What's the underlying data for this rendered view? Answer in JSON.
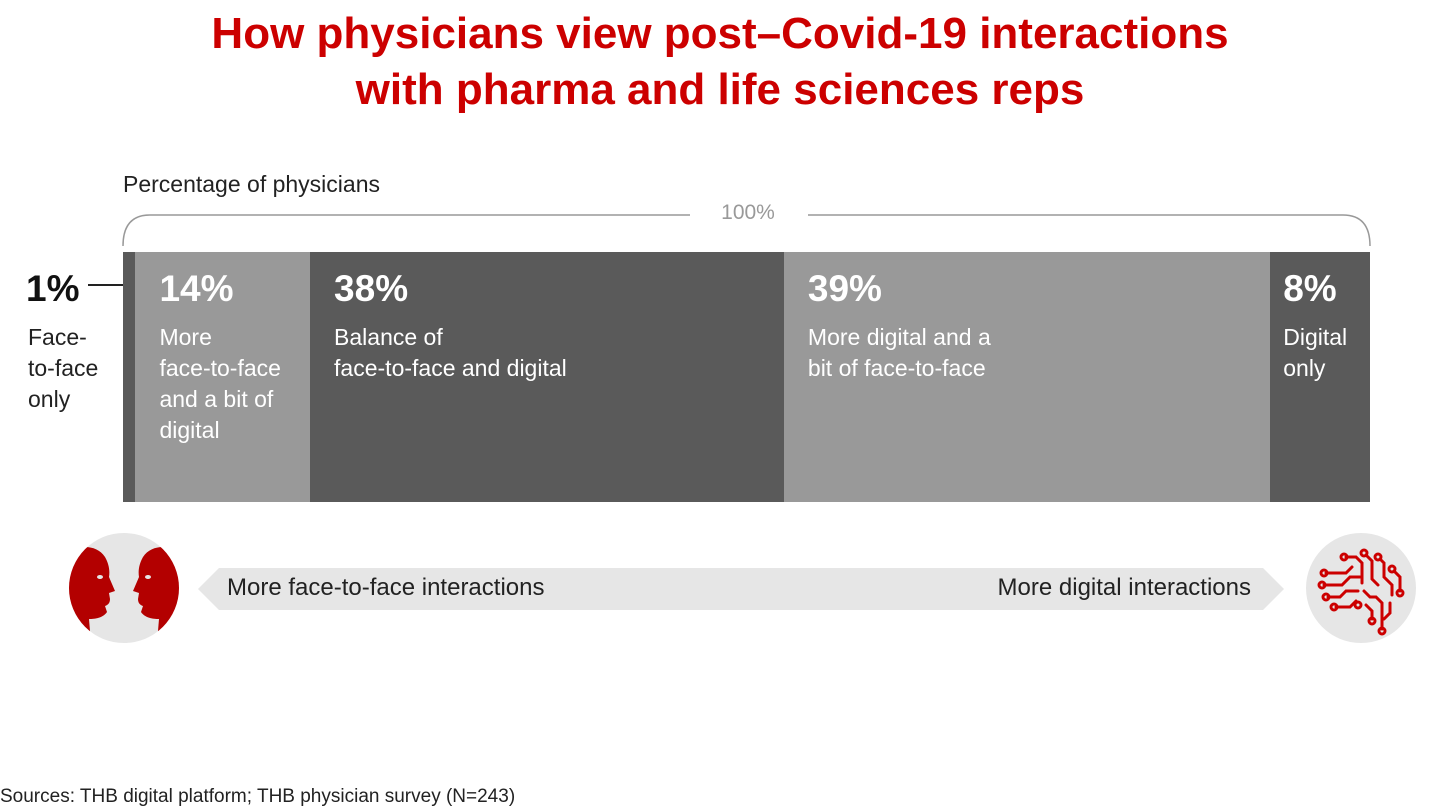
{
  "chart_data": {
    "type": "bar",
    "orientation": "horizontal",
    "stacked": true,
    "title_lines": [
      "How physicians view post–Covid-19 interactions",
      "with pharma and life sciences reps"
    ],
    "subtitle": "Percentage of physicians",
    "total_label": "100%",
    "segments": [
      {
        "pct_label": "1%",
        "value": 1,
        "label_lines": [
          "Face-",
          "to-face",
          "only"
        ],
        "color": "#5a5a5a"
      },
      {
        "pct_label": "14%",
        "value": 14,
        "label_lines": [
          "More",
          "face-to-face",
          "and a bit of",
          "digital"
        ],
        "color": "#999999"
      },
      {
        "pct_label": "38%",
        "value": 38,
        "label_lines": [
          "Balance of",
          "face-to-face and digital"
        ],
        "color": "#5a5a5a"
      },
      {
        "pct_label": "39%",
        "value": 39,
        "label_lines": [
          "More digital and a",
          "bit of face-to-face"
        ],
        "color": "#999999"
      },
      {
        "pct_label": "8%",
        "value": 8,
        "label_lines": [
          "Digital",
          "only"
        ],
        "color": "#5a5a5a"
      }
    ],
    "scale_left": "More face-to-face interactions",
    "scale_right": "More digital interactions",
    "source": "Sources: THB digital platform; THB physician survey (N=243)"
  },
  "icons": {
    "left": "face-to-face-icon",
    "right": "digital-brain-icon"
  },
  "colors": {
    "accent": "#cc0000",
    "dark": "#5a5a5a",
    "light": "#999999",
    "band": "#e6e6e6"
  }
}
